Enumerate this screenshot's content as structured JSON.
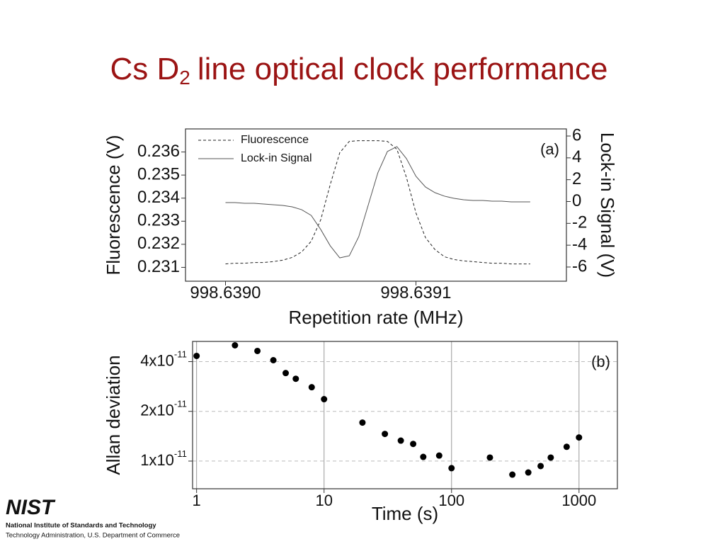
{
  "slide": {
    "title_parts": [
      "Cs D",
      "2",
      "line optical clock performance"
    ]
  },
  "chart_data": [
    {
      "type": "line",
      "annotation": "(a)",
      "xlabel": "Repetition rate (MHz)",
      "ylabel": "Fluorescence (V)",
      "y2label": "Lock-in Signal (V)",
      "xlim": [
        998.638979,
        998.639179
      ],
      "xticks": [
        {
          "value": 998.639,
          "label": "998.6390"
        },
        {
          "value": 998.6391,
          "label": "998.6391"
        }
      ],
      "ylim": [
        0.2304,
        0.237
      ],
      "yticks": [
        0.231,
        0.232,
        0.233,
        0.234,
        0.235,
        0.236
      ],
      "y2lim": [
        -7.3,
        6.65
      ],
      "y2ticks": [
        -6,
        -4,
        -2,
        0,
        2,
        4,
        6
      ],
      "legend": "upper left",
      "x": [
        998.639,
        998.639005,
        998.63901,
        998.639015,
        998.63902,
        998.639025,
        998.63903,
        998.639035,
        998.63904,
        998.639045,
        998.63905,
        998.639055,
        998.63906,
        998.639065,
        998.63907,
        998.639075,
        998.63908,
        998.639085,
        998.63909,
        998.639095,
        998.6391,
        998.639105,
        998.63911,
        998.639115,
        998.63912,
        998.639125,
        998.63913,
        998.639135,
        998.63914,
        998.639145,
        998.63915,
        998.639155,
        998.63916
      ],
      "series": [
        {
          "name": "Fluorescence",
          "color": "#222222",
          "line_style": "dashed",
          "values": [
            0.23115,
            0.23118,
            0.23118,
            0.23121,
            0.23121,
            0.23125,
            0.23131,
            0.23143,
            0.23167,
            0.23213,
            0.23306,
            0.23459,
            0.23597,
            0.23646,
            0.23649,
            0.23649,
            0.23649,
            0.23646,
            0.23612,
            0.2349,
            0.23336,
            0.23229,
            0.23177,
            0.23146,
            0.23134,
            0.23128,
            0.23125,
            0.23121,
            0.23118,
            0.23118,
            0.23115,
            0.23115,
            0.23115
          ]
        },
        {
          "name": "Lock-in Signal",
          "color": "#555555",
          "line_style": "solid",
          "axis": "y2",
          "values": [
            -0.1,
            -0.1,
            -0.16,
            -0.16,
            -0.23,
            -0.29,
            -0.36,
            -0.49,
            -0.75,
            -1.27,
            -2.56,
            -4.06,
            -5.16,
            -4.97,
            -3.21,
            -0.29,
            2.63,
            4.58,
            5.03,
            3.93,
            2.31,
            1.33,
            0.81,
            0.49,
            0.29,
            0.16,
            0.1,
            0.1,
            0.03,
            0.03,
            -0.03,
            -0.03,
            -0.03
          ]
        }
      ]
    },
    {
      "type": "scatter",
      "annotation": "(b)",
      "xlabel": "Time (s)",
      "ylabel": "Allan deviation",
      "xscale": "log",
      "yscale": "log",
      "grid": true,
      "color": "#000000",
      "xlim": [
        0.93,
        2000
      ],
      "xticks": [
        1,
        10,
        100,
        1000
      ],
      "ylim": [
        6.8e-12,
        5.3e-11
      ],
      "yticks": [
        {
          "value": 1e-11,
          "label": "1x10",
          "sup": "-11"
        },
        {
          "value": 2e-11,
          "label": "2x10",
          "sup": "-11"
        },
        {
          "value": 4e-11,
          "label": "4x10",
          "sup": "-11"
        }
      ],
      "x": [
        1,
        2,
        3,
        4,
        5,
        6,
        8,
        10,
        20,
        30,
        40,
        50,
        60,
        80,
        100,
        200,
        300,
        400,
        500,
        600,
        800,
        1000
      ],
      "values": [
        4.33e-11,
        5.02e-11,
        4.64e-11,
        4.08e-11,
        3.41e-11,
        3.15e-11,
        2.8e-11,
        2.37e-11,
        1.71e-11,
        1.46e-11,
        1.33e-11,
        1.27e-11,
        1.06e-11,
        1.08e-11,
        9.06e-12,
        1.05e-11,
        8.28e-12,
        8.53e-12,
        9.33e-12,
        1.05e-11,
        1.22e-11,
        1.39e-11
      ]
    }
  ],
  "footer": {
    "logo": "NIST",
    "line1": "National Institute of Standards and Technology",
    "line2": "Technology Administration, U.S. Department of Commerce"
  }
}
